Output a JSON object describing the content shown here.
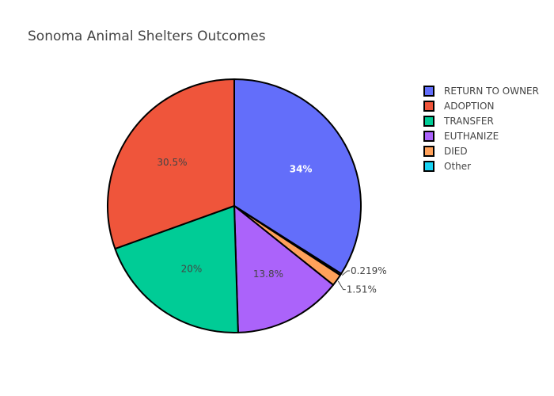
{
  "chart_data": {
    "type": "pie",
    "title": "Sonoma Animal Shelters Outcomes",
    "slices": [
      {
        "label": "RETURN TO OWNER",
        "percent": 34.0,
        "text": "34%",
        "color": "#636efa",
        "text_color": "#ffffff",
        "text_bold": true,
        "label_position": "inside"
      },
      {
        "label": "Other",
        "percent": 0.219,
        "text": "0.219%",
        "color": "#19d3f3",
        "text_color": "#444444",
        "text_bold": false,
        "label_position": "outside"
      },
      {
        "label": "DIED",
        "percent": 1.51,
        "text": "1.51%",
        "color": "#ffa15a",
        "text_color": "#444444",
        "text_bold": false,
        "label_position": "outside"
      },
      {
        "label": "EUTHANIZE",
        "percent": 13.8,
        "text": "13.8%",
        "color": "#ab63fa",
        "text_color": "#444444",
        "text_bold": false,
        "label_position": "inside"
      },
      {
        "label": "TRANSFER",
        "percent": 20.0,
        "text": "20%",
        "color": "#00cc96",
        "text_color": "#444444",
        "text_bold": false,
        "label_position": "inside"
      },
      {
        "label": "ADOPTION",
        "percent": 30.5,
        "text": "30.5%",
        "color": "#ef553b",
        "text_color": "#444444",
        "text_bold": false,
        "label_position": "inside"
      }
    ],
    "legend": {
      "placement": "top-right",
      "order": [
        "RETURN TO OWNER",
        "ADOPTION",
        "TRANSFER",
        "EUTHANIZE",
        "DIED",
        "Other"
      ]
    },
    "slice_border_color": "#000000"
  }
}
